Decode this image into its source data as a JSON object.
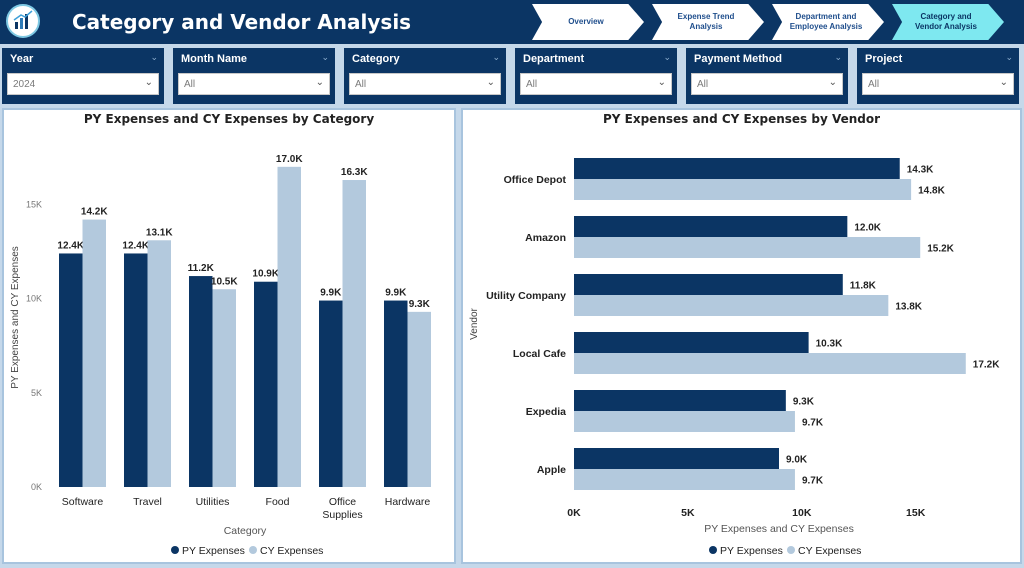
{
  "header": {
    "title": "Category and Vendor Analysis"
  },
  "nav": [
    {
      "label": "Overview",
      "active": false
    },
    {
      "label": "Expense Trend Analysis",
      "active": false
    },
    {
      "label": "Department and Employee Analysis",
      "active": false
    },
    {
      "label": "Category and Vendor Analysis",
      "active": true
    }
  ],
  "filters": [
    {
      "label": "Year",
      "value": "2024"
    },
    {
      "label": "Month Name",
      "value": "All"
    },
    {
      "label": "Category",
      "value": "All"
    },
    {
      "label": "Department",
      "value": "All"
    },
    {
      "label": "Payment Method",
      "value": "All"
    },
    {
      "label": "Project",
      "value": "All"
    }
  ],
  "colors": {
    "header": "#0b3564",
    "py": "#0b3564",
    "cy": "#b3c9dd",
    "active_nav": "#7ee8f0"
  },
  "chart_data": [
    {
      "type": "bar",
      "title": "PY Expenses and CY Expenses by Category",
      "xlabel": "Category",
      "ylabel": "PY Expenses and CY Expenses",
      "categories": [
        "Software",
        "Travel",
        "Utilities",
        "Food",
        "Office Supplies",
        "Hardware"
      ],
      "series": [
        {
          "name": "PY Expenses",
          "values": [
            12.4,
            12.4,
            11.2,
            10.9,
            9.9,
            9.9
          ],
          "labels": [
            "12.4K",
            "12.4K",
            "11.2K",
            "10.9K",
            "9.9K",
            "9.9K"
          ]
        },
        {
          "name": "CY Expenses",
          "values": [
            14.2,
            13.1,
            10.5,
            17.0,
            16.3,
            9.3
          ],
          "labels": [
            "14.2K",
            "13.1K",
            "10.5K",
            "17.0K",
            "16.3K",
            "9.3K"
          ]
        }
      ],
      "ylim": [
        0,
        18
      ],
      "yticks": [
        0,
        5,
        10,
        15
      ],
      "ytick_labels": [
        "0K",
        "5K",
        "10K",
        "15K"
      ],
      "legend": "bottom",
      "grid": false
    },
    {
      "type": "bar",
      "orientation": "horizontal",
      "title": "PY Expenses and CY Expenses by Vendor",
      "xlabel": "PY Expenses and CY Expenses",
      "ylabel": "Vendor",
      "categories": [
        "Office Depot",
        "Amazon",
        "Utility Company",
        "Local Cafe",
        "Expedia",
        "Apple"
      ],
      "series": [
        {
          "name": "PY Expenses",
          "values": [
            14.3,
            12.0,
            11.8,
            10.3,
            9.3,
            9.0
          ],
          "labels": [
            "14.3K",
            "12.0K",
            "11.8K",
            "10.3K",
            "9.3K",
            "9.0K"
          ]
        },
        {
          "name": "CY Expenses",
          "values": [
            14.8,
            15.2,
            13.8,
            17.2,
            9.7,
            9.7
          ],
          "labels": [
            "14.8K",
            "15.2K",
            "13.8K",
            "17.2K",
            "9.7K",
            "9.7K"
          ]
        }
      ],
      "xlim": [
        0,
        18
      ],
      "xticks": [
        0,
        5,
        10,
        15
      ],
      "xtick_labels": [
        "0K",
        "5K",
        "10K",
        "15K"
      ],
      "legend": "bottom",
      "grid": false
    }
  ]
}
